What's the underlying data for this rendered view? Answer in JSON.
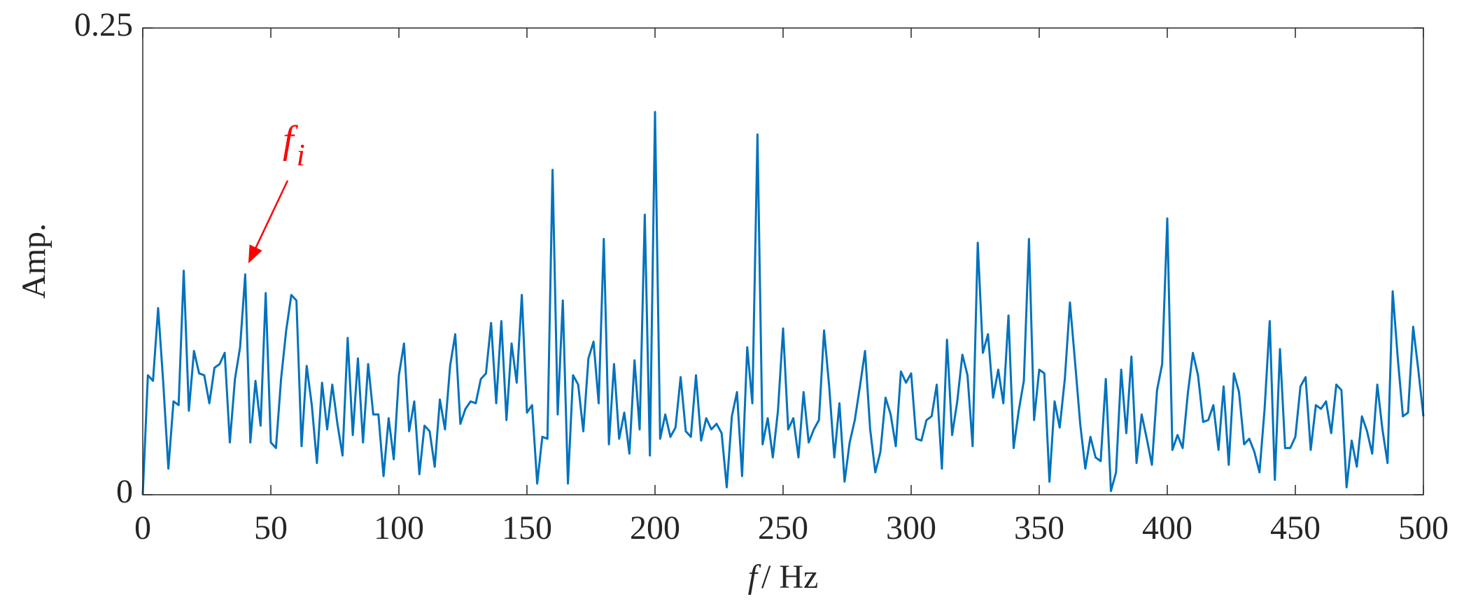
{
  "chart_data": {
    "type": "line",
    "ylabel": "Amp.",
    "xlabel_symbol": "f",
    "xlabel_unit": "/  Hz",
    "annotation": {
      "text": "f",
      "subscript": "i",
      "color": "#ff0000"
    },
    "xlim": [
      0,
      500
    ],
    "xticks": [
      0,
      50,
      100,
      150,
      200,
      250,
      300,
      350,
      400,
      450,
      500
    ],
    "ylim": [
      0,
      0.25
    ],
    "yticks": [
      0,
      0.25
    ],
    "box": true,
    "series": [
      {
        "color": "#0072bd",
        "x": [
          0,
          2,
          4,
          6,
          8,
          10,
          12,
          14,
          16,
          18,
          20,
          22,
          24,
          26,
          28,
          30,
          32,
          34,
          36,
          38,
          40,
          42,
          44,
          46,
          48,
          50,
          52,
          54,
          56,
          58,
          60,
          62,
          64,
          66,
          68,
          70,
          72,
          74,
          76,
          78,
          80,
          82,
          84,
          86,
          88,
          90,
          92,
          94,
          96,
          98,
          100,
          102,
          104,
          106,
          108,
          110,
          112,
          114,
          116,
          118,
          120,
          122,
          124,
          126,
          128,
          130,
          132,
          134,
          136,
          138,
          140,
          142,
          144,
          146,
          148,
          150,
          152,
          154,
          156,
          158,
          160,
          162,
          164,
          166,
          168,
          170,
          172,
          174,
          176,
          178,
          180,
          182,
          184,
          186,
          188,
          190,
          192,
          194,
          196,
          198,
          200,
          202,
          204,
          206,
          208,
          210,
          212,
          214,
          216,
          218,
          220,
          222,
          224,
          226,
          228,
          230,
          232,
          234,
          236,
          238,
          240,
          242,
          244,
          246,
          248,
          250,
          252,
          254,
          256,
          258,
          260,
          262,
          264,
          266,
          268,
          270,
          272,
          274,
          276,
          278,
          280,
          282,
          284,
          286,
          288,
          290,
          292,
          294,
          296,
          298,
          300,
          302,
          304,
          306,
          308,
          310,
          312,
          314,
          316,
          318,
          320,
          322,
          324,
          326,
          328,
          330,
          332,
          334,
          336,
          338,
          340,
          342,
          344,
          346,
          348,
          350,
          352,
          354,
          356,
          358,
          360,
          362,
          364,
          366,
          368,
          370,
          372,
          374,
          376,
          378,
          380,
          382,
          384,
          386,
          388,
          390,
          392,
          394,
          396,
          398,
          400,
          402,
          404,
          406,
          408,
          410,
          412,
          414,
          416,
          418,
          420,
          422,
          424,
          426,
          428,
          430,
          432,
          434,
          436,
          438,
          440,
          442,
          444,
          446,
          448,
          450,
          452,
          454,
          456,
          458,
          460,
          462,
          464,
          466,
          468,
          470,
          472,
          474,
          476,
          478,
          480,
          482,
          484,
          486,
          488,
          490,
          492,
          494,
          496,
          498,
          500
        ],
        "values": [
          0,
          0.064,
          0.061,
          0.1,
          0.06,
          0.014,
          0.05,
          0.048,
          0.12,
          0.045,
          0.077,
          0.065,
          0.064,
          0.049,
          0.068,
          0.07,
          0.076,
          0.028,
          0.062,
          0.079,
          0.118,
          0.028,
          0.061,
          0.037,
          0.108,
          0.028,
          0.025,
          0.062,
          0.088,
          0.107,
          0.104,
          0.026,
          0.069,
          0.048,
          0.017,
          0.06,
          0.035,
          0.059,
          0.038,
          0.021,
          0.084,
          0.032,
          0.073,
          0.028,
          0.07,
          0.043,
          0.043,
          0.01,
          0.041,
          0.019,
          0.064,
          0.081,
          0.034,
          0.05,
          0.011,
          0.037,
          0.034,
          0.015,
          0.051,
          0.035,
          0.069,
          0.086,
          0.038,
          0.046,
          0.05,
          0.049,
          0.062,
          0.065,
          0.092,
          0.049,
          0.093,
          0.04,
          0.081,
          0.06,
          0.107,
          0.044,
          0.048,
          0.006,
          0.031,
          0.03,
          0.174,
          0.043,
          0.104,
          0.006,
          0.064,
          0.059,
          0.034,
          0.073,
          0.082,
          0.049,
          0.137,
          0.027,
          0.07,
          0.03,
          0.044,
          0.022,
          0.072,
          0.035,
          0.15,
          0.021,
          0.205,
          0.03,
          0.043,
          0.031,
          0.036,
          0.063,
          0.034,
          0.031,
          0.064,
          0.029,
          0.041,
          0.035,
          0.038,
          0.033,
          0.004,
          0.042,
          0.055,
          0.01,
          0.079,
          0.049,
          0.193,
          0.027,
          0.041,
          0.02,
          0.045,
          0.089,
          0.035,
          0.041,
          0.02,
          0.055,
          0.028,
          0.035,
          0.04,
          0.088,
          0.058,
          0.02,
          0.049,
          0.007,
          0.028,
          0.04,
          0.058,
          0.077,
          0.035,
          0.012,
          0.023,
          0.052,
          0.043,
          0.026,
          0.066,
          0.06,
          0.065,
          0.03,
          0.029,
          0.04,
          0.042,
          0.059,
          0.014,
          0.083,
          0.032,
          0.05,
          0.075,
          0.064,
          0.026,
          0.135,
          0.076,
          0.086,
          0.052,
          0.067,
          0.049,
          0.096,
          0.025,
          0.045,
          0.061,
          0.137,
          0.04,
          0.067,
          0.065,
          0.007,
          0.05,
          0.036,
          0.062,
          0.103,
          0.071,
          0.038,
          0.014,
          0.031,
          0.02,
          0.018,
          0.062,
          0.002,
          0.012,
          0.067,
          0.033,
          0.074,
          0.017,
          0.043,
          0.03,
          0.016,
          0.056,
          0.07,
          0.148,
          0.024,
          0.032,
          0.025,
          0.054,
          0.076,
          0.064,
          0.039,
          0.04,
          0.048,
          0.024,
          0.058,
          0.016,
          0.065,
          0.055,
          0.027,
          0.03,
          0.023,
          0.012,
          0.046,
          0.093,
          0.008,
          0.078,
          0.025,
          0.025,
          0.031,
          0.058,
          0.063,
          0.024,
          0.048,
          0.046,
          0.05,
          0.033,
          0.059,
          0.056,
          0.004,
          0.029,
          0.015,
          0.042,
          0.034,
          0.022,
          0.059,
          0.035,
          0.017,
          0.109,
          0.073,
          0.042,
          0.044,
          0.09,
          0.067,
          0.042
        ]
      }
    ]
  }
}
